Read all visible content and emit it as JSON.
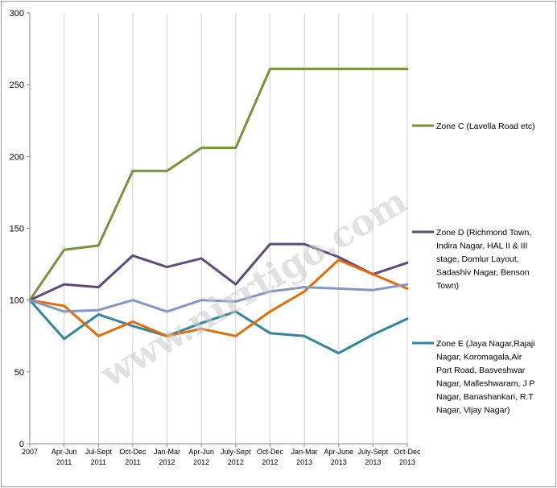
{
  "chart_data": {
    "type": "line",
    "title": "",
    "xlabel": "",
    "ylabel": "",
    "ylim": [
      0,
      300
    ],
    "yticks": [
      0,
      50,
      100,
      150,
      200,
      250,
      300
    ],
    "grid": "vertical gridlines",
    "legend_position": "right",
    "categories": [
      [
        "2007"
      ],
      [
        "Apr-Jun",
        "2011"
      ],
      [
        "Jul-Sept",
        "2011"
      ],
      [
        "Oct-Dec",
        "2011"
      ],
      [
        "Jan-Mar",
        "2012"
      ],
      [
        "Apr-Jun",
        "2012"
      ],
      [
        "July-Sept",
        "2012"
      ],
      [
        "Oct-Dec",
        "2012"
      ],
      [
        "Jan-Mar",
        "2013"
      ],
      [
        "Apr-June",
        "2013"
      ],
      [
        "July-Sept",
        "2013"
      ],
      [
        "Oct-Dec",
        "2013"
      ]
    ],
    "series": [
      {
        "name": "Zone C (Lavella Road etc)",
        "color": "#77933c",
        "values": [
          100,
          135,
          138,
          190,
          190,
          206,
          206,
          261,
          261,
          261,
          261,
          261
        ],
        "legend_lines": [
          "Zone C (Lavella Road etc)"
        ]
      },
      {
        "name": "Zone D (Richmond Town, Indira Nagar, HAL II & III stage, Domlur Layout, Sadashiv Nagar, Benson Town)",
        "color": "#604a7b",
        "values": [
          100,
          111,
          109,
          131,
          123,
          129,
          111,
          139,
          139,
          130,
          118,
          126
        ],
        "legend_lines": [
          "Zone D (Richmond Town,",
          "Indira Nagar, HAL II & III",
          "stage, Domlur Layout,",
          "Sadashiv Nagar, Benson",
          "Town)"
        ]
      },
      {
        "name": "Zone E (Jaya Nagar,Rajaji Nagar, Koromagala,Air Port Road, Basveshwar Nagar, Malleshwaram, J P Nagar, Banashankari, R.T Nagar, Vijay Nagar)",
        "color": "#31859c",
        "values": [
          100,
          73,
          90,
          82,
          75,
          84,
          92,
          77,
          75,
          63,
          76,
          87
        ],
        "legend_lines": [
          "Zone E (Jaya Nagar,Rajaji",
          "Nagar, Koromagala,Air",
          "Port Road, Basveshwar",
          "Nagar, Malleshwaram, J P",
          "Nagar, Banashankari, R.T",
          "Nagar, Vijay Nagar)"
        ]
      },
      {
        "name": "",
        "color": "#e46c0a",
        "values": [
          100,
          96,
          75,
          85,
          75,
          80,
          75,
          92,
          106,
          128,
          118,
          108
        ],
        "legend_lines": []
      },
      {
        "name": "",
        "color": "#8497c4",
        "values": [
          100,
          92,
          93,
          100,
          92,
          100,
          99,
          106,
          109,
          108,
          107,
          111
        ],
        "legend_lines": []
      }
    ]
  },
  "watermark": "www.nirrtigo.com"
}
